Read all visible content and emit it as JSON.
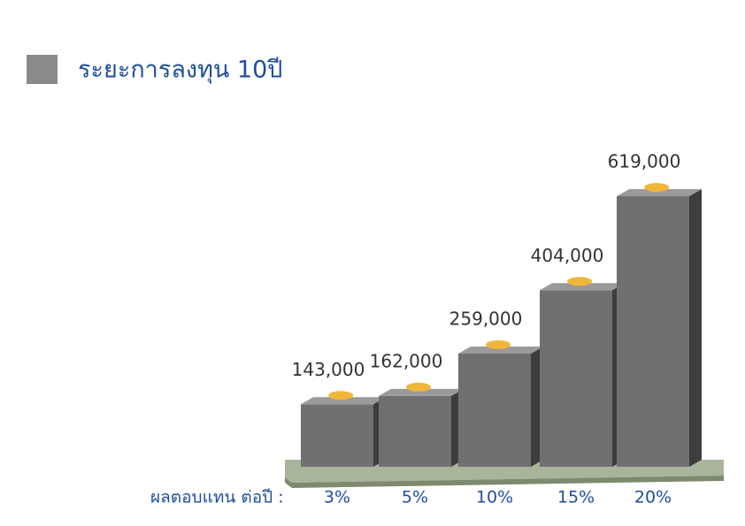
{
  "chart_data": {
    "type": "bar",
    "title": "ระยะการลงทุน 10ปี",
    "x_label": "ผลตอบแทน ต่อปี :",
    "categories": [
      "3%",
      "5%",
      "10%",
      "15%",
      "20%"
    ],
    "values": [
      143000,
      162000,
      259000,
      404000,
      619000
    ],
    "value_labels": [
      "143,000",
      "162,000",
      "259,000",
      "404,000",
      "619,000"
    ],
    "color": "#707073"
  }
}
